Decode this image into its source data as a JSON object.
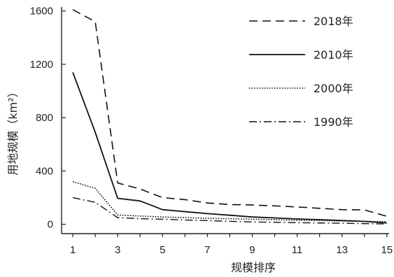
{
  "chart_data": {
    "type": "line",
    "title": "",
    "xlabel": "规模排序",
    "ylabel": "用地规模（km²）",
    "x": [
      1,
      2,
      3,
      4,
      5,
      6,
      7,
      8,
      9,
      10,
      11,
      12,
      13,
      14,
      15
    ],
    "xticks": [
      1,
      3,
      5,
      7,
      9,
      11,
      13,
      15
    ],
    "xtick_labels": [
      "1",
      "3",
      "5",
      "7",
      "9",
      "11",
      "13",
      "15"
    ],
    "yticks": [
      0,
      400,
      800,
      1200,
      1600
    ],
    "ytick_labels": [
      "0",
      "400",
      "800",
      "1200",
      "1600"
    ],
    "xlim": [
      0.5,
      15.1
    ],
    "ylim": [
      -70,
      1630
    ],
    "grid": false,
    "legend_position": "top-right",
    "series": [
      {
        "name": "2018年",
        "style": "dashed",
        "values": [
          1610,
          1520,
          310,
          265,
          200,
          185,
          160,
          148,
          145,
          138,
          130,
          120,
          110,
          108,
          60
        ]
      },
      {
        "name": "2010年",
        "style": "solid",
        "values": [
          1140,
          690,
          195,
          175,
          110,
          95,
          80,
          68,
          55,
          48,
          40,
          35,
          28,
          22,
          10
        ]
      },
      {
        "name": "2000年",
        "style": "dotted",
        "values": [
          320,
          270,
          70,
          62,
          55,
          50,
          45,
          42,
          38,
          35,
          30,
          28,
          25,
          22,
          20
        ]
      },
      {
        "name": "1990年",
        "style": "dashdot",
        "values": [
          200,
          165,
          50,
          42,
          38,
          32,
          28,
          22,
          18,
          15,
          12,
          10,
          8,
          5,
          3
        ]
      }
    ]
  },
  "colors": {
    "line": "#111111",
    "axis": "#222222",
    "background": "#ffffff"
  }
}
